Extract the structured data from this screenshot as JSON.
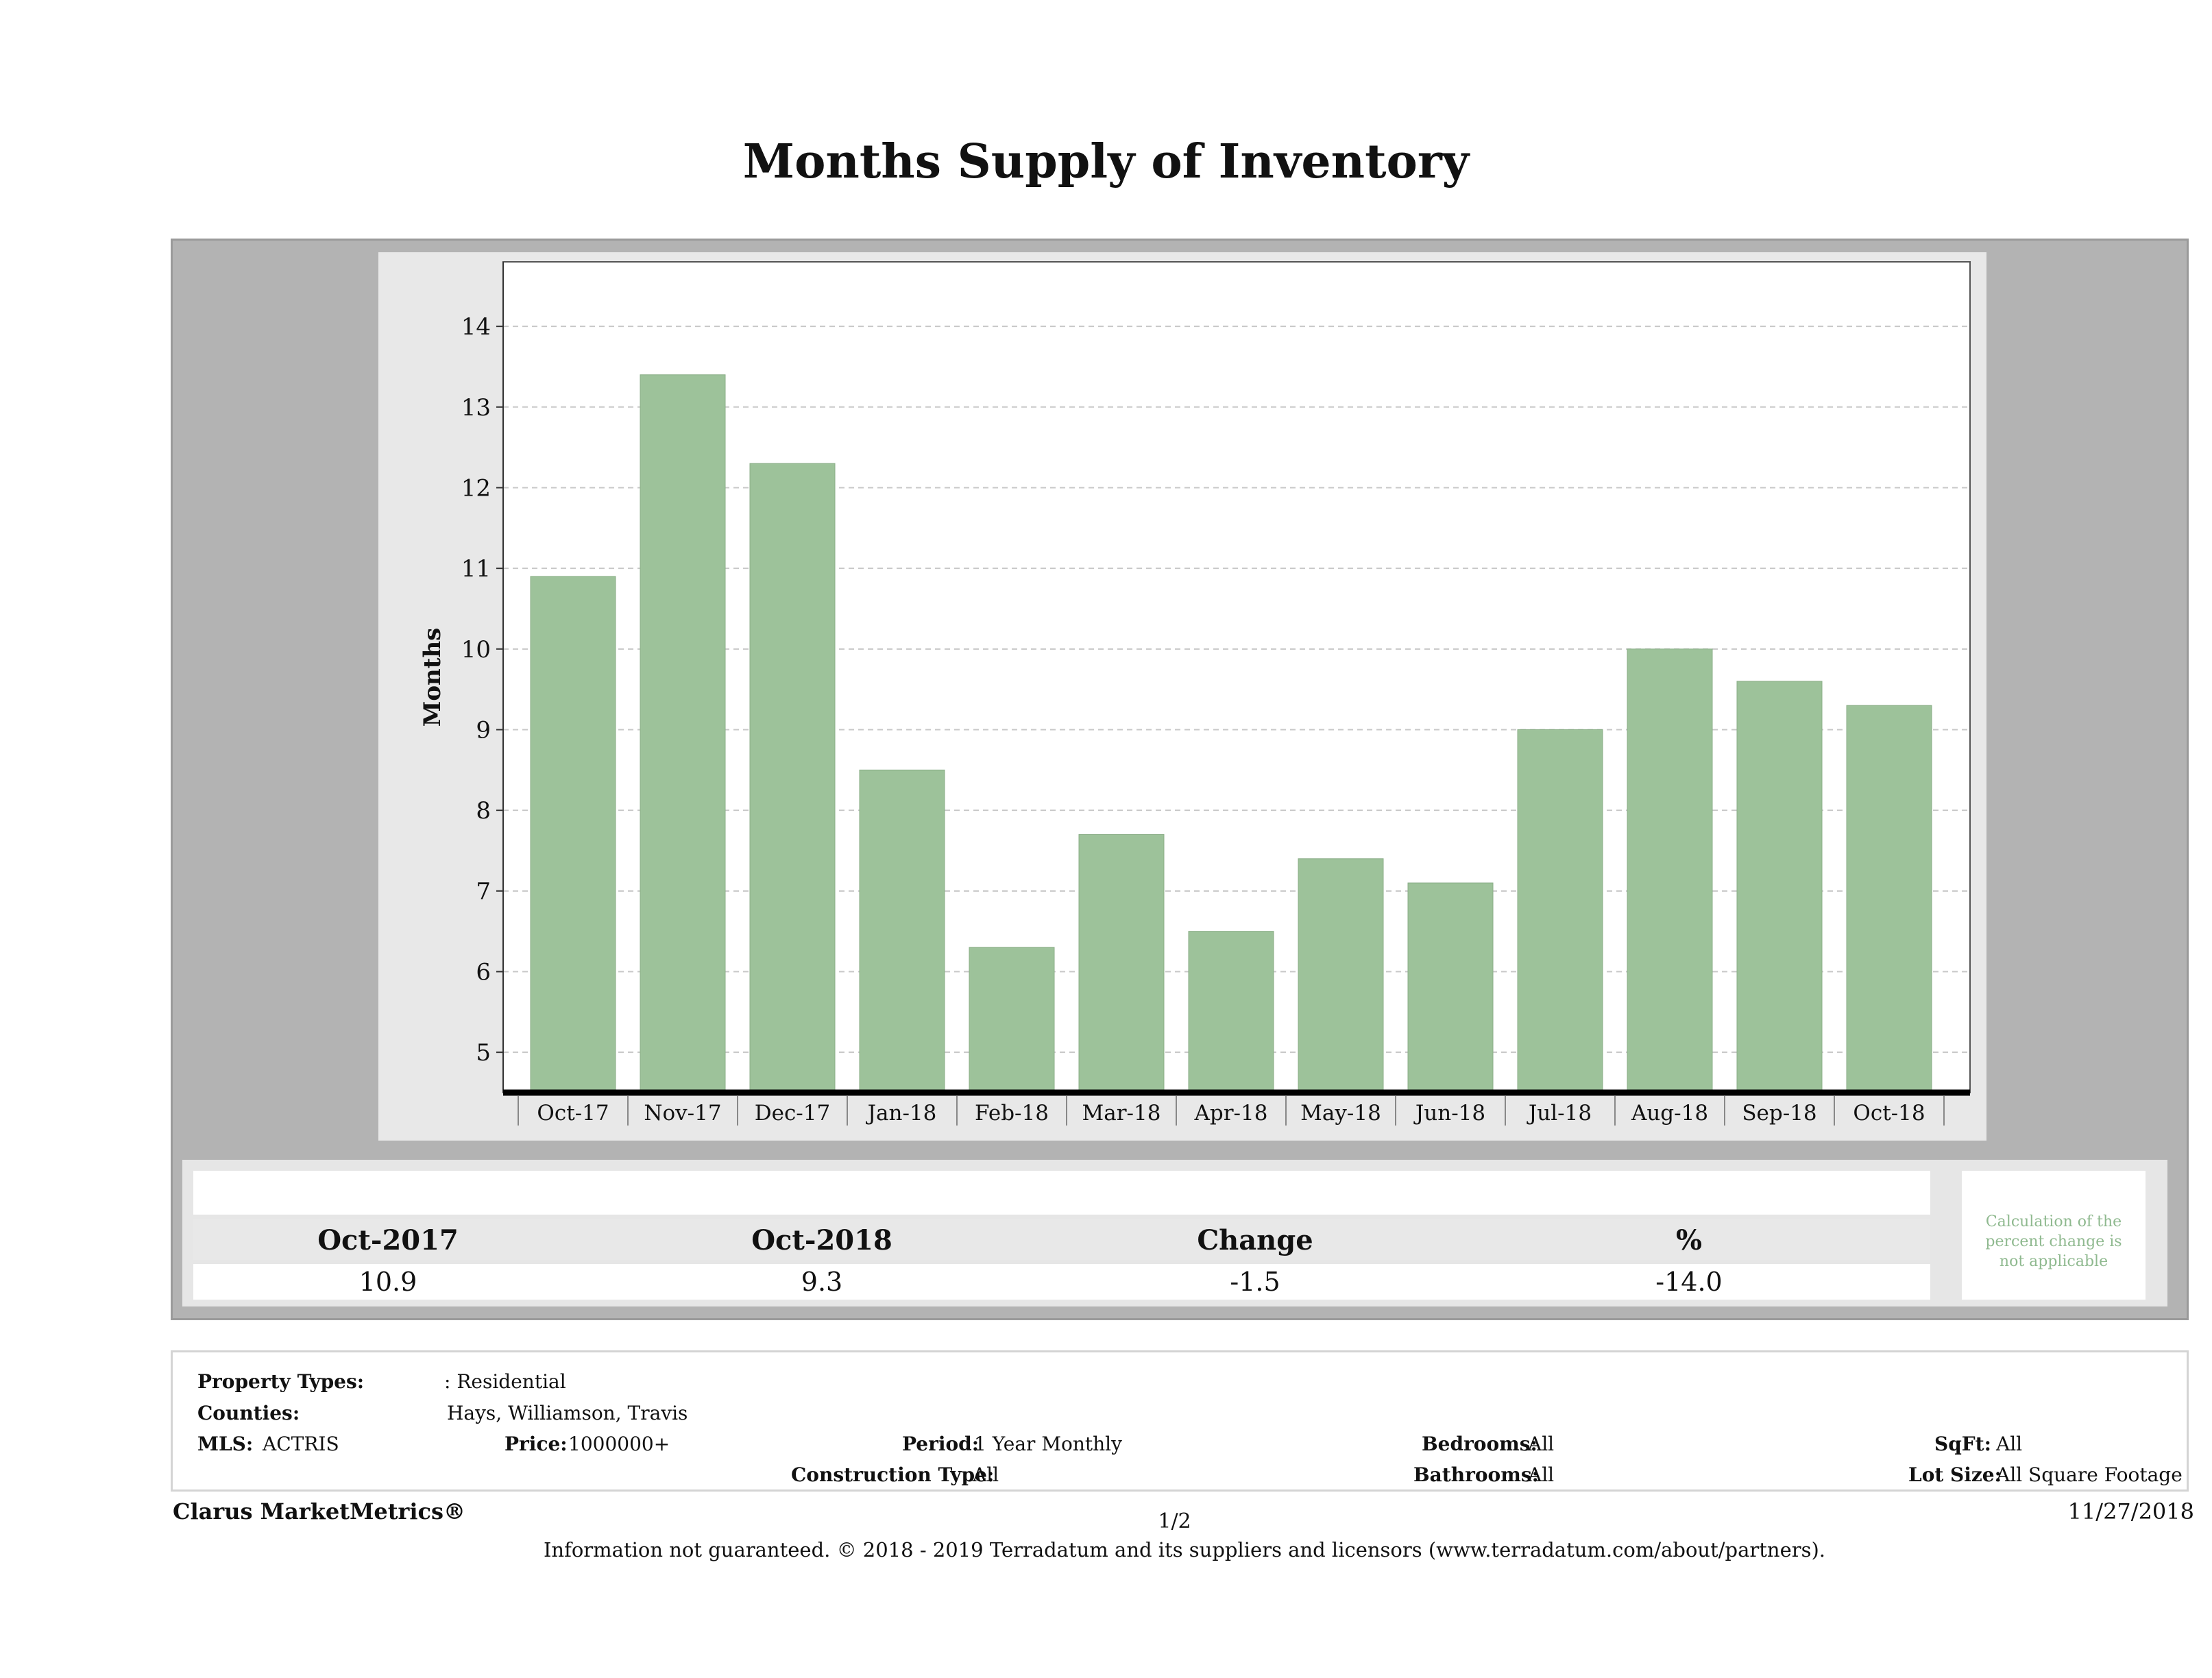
{
  "title": "Months Supply of Inventory",
  "chart_data": {
    "type": "bar",
    "categories": [
      "Oct-17",
      "Nov-17",
      "Dec-17",
      "Jan-18",
      "Feb-18",
      "Mar-18",
      "Apr-18",
      "May-18",
      "Jun-18",
      "Jul-18",
      "Aug-18",
      "Sep-18",
      "Oct-18"
    ],
    "values": [
      10.9,
      13.4,
      12.3,
      8.5,
      6.3,
      7.7,
      6.5,
      7.4,
      7.1,
      9.0,
      10.0,
      9.6,
      9.3
    ],
    "ylabel": "Months",
    "xlabel": "",
    "ylim": [
      4.5,
      14.8
    ],
    "yticks": [
      5,
      6,
      7,
      8,
      9,
      10,
      11,
      12,
      13,
      14
    ],
    "grid": true,
    "bar_color": "#9dc29a"
  },
  "summary": {
    "headers": [
      "Oct-2017",
      "Oct-2018",
      "Change",
      "%"
    ],
    "values": [
      "10.9",
      "9.3",
      "-1.5",
      "-14.0"
    ],
    "note": "Calculation of the percent change is not applicable"
  },
  "properties": {
    "property_types_label": "Property Types:",
    "property_types_value": ": Residential",
    "counties_label": "Counties:",
    "counties_value": "Hays, Williamson, Travis",
    "mls_label": "MLS:",
    "mls_value": "ACTRIS",
    "price_label": "Price:",
    "price_value": "1000000+",
    "period_label": "Period:",
    "period_value": "1 Year Monthly",
    "construction_label": "Construction Type:",
    "construction_value": "All",
    "bedrooms_label": "Bedrooms:",
    "bedrooms_value": "All",
    "bathrooms_label": "Bathrooms:",
    "bathrooms_value": "All",
    "sqft_label": "SqFt:",
    "sqft_value": "All",
    "lotsize_label": "Lot Size:",
    "lotsize_value": "All Square Footage"
  },
  "footer": {
    "brand": "Clarus MarketMetrics®",
    "page": "1/2",
    "date": "11/27/2018",
    "info": "Information not guaranteed. © 2018 - 2019 Terradatum and its suppliers and licensors (www.terradatum.com/about/partners)."
  }
}
